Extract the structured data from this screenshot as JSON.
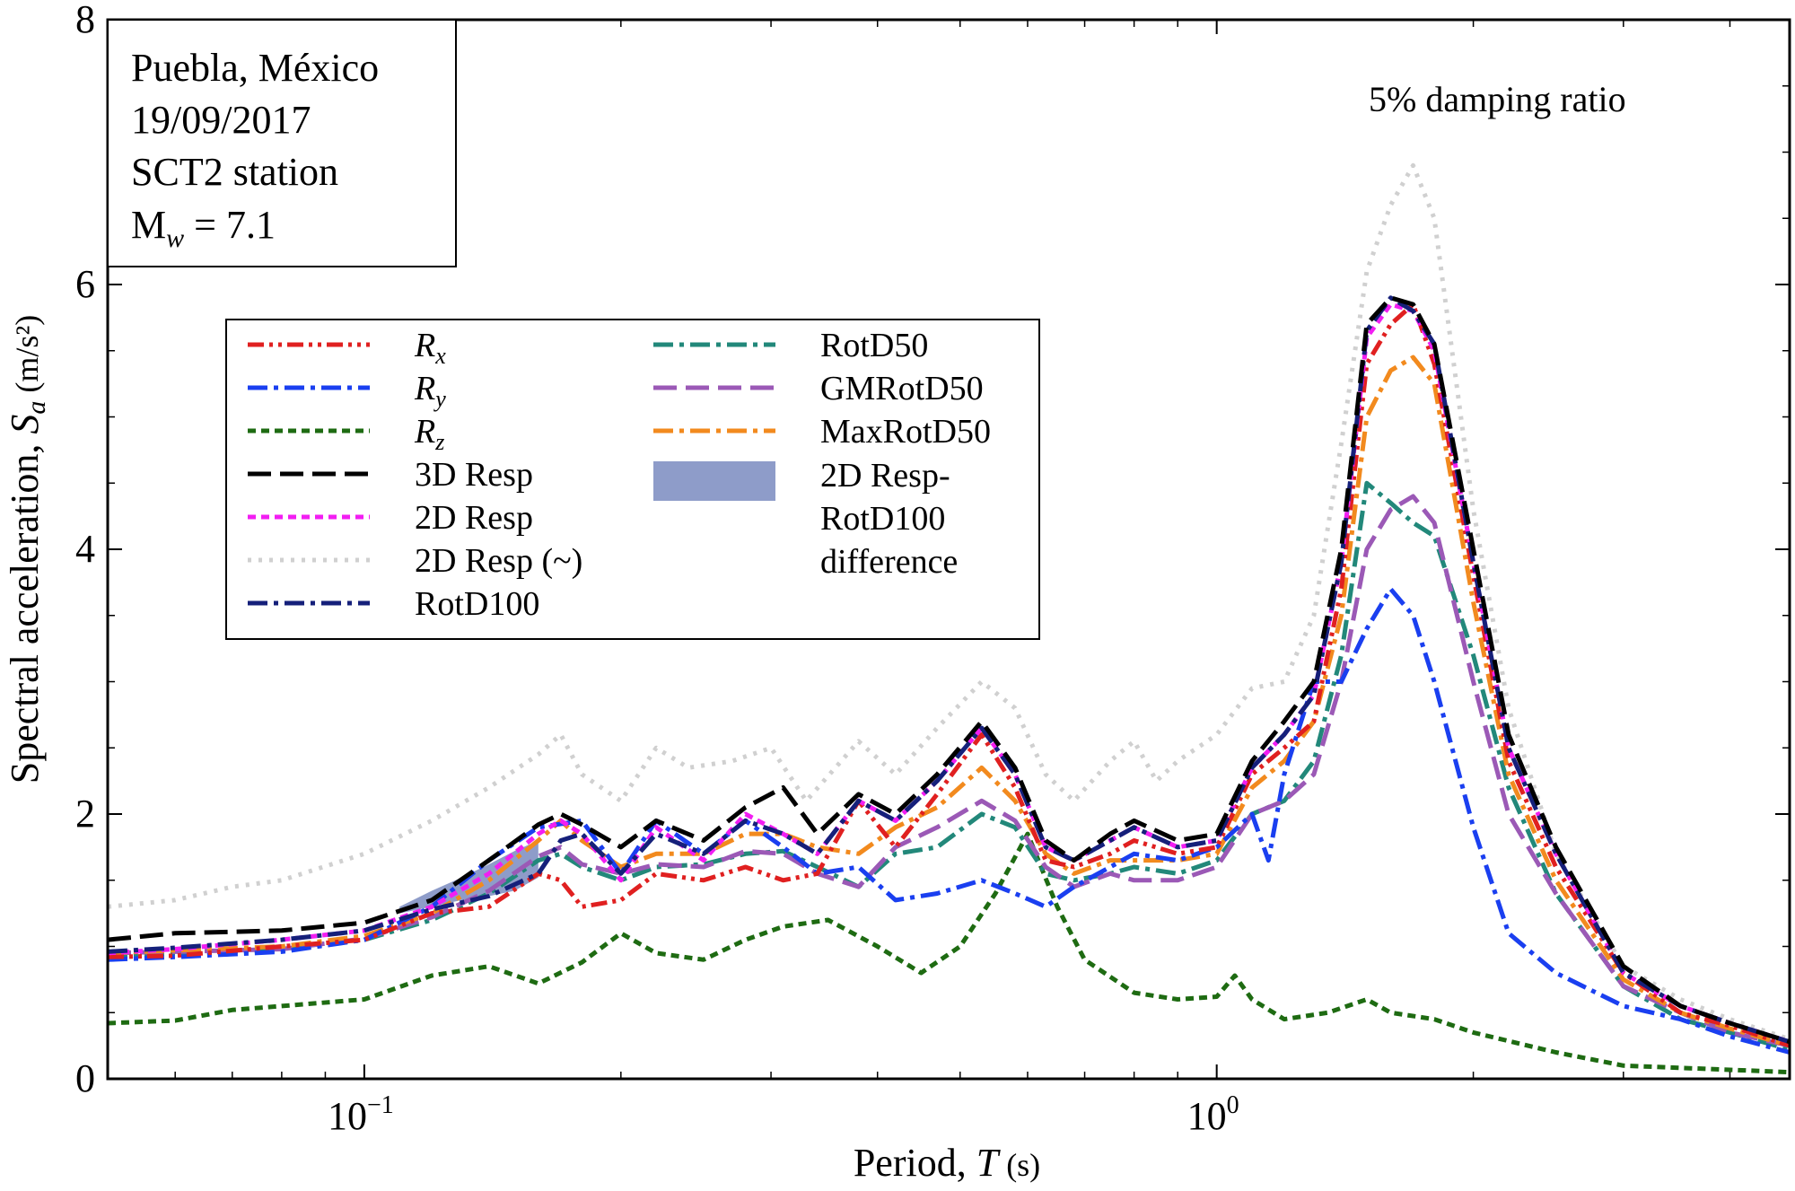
{
  "info_box": {
    "line1": "Puebla, México",
    "line2": "19/09/2017",
    "line3": "SCT2 station",
    "mw_main": "M",
    "mw_sub": "w",
    "mw_rest": " = 7.1"
  },
  "annotation": "5% damping ratio",
  "chart_data": {
    "type": "line",
    "xlabel_text": "Period, ",
    "xlabel_italic": "T",
    "xlabel_unit": " (s)",
    "ylabel_text": "Spectral acceleration, ",
    "ylabel_italic": "S",
    "ylabel_sub": "a",
    "ylabel_unit": " (m/s²)",
    "x_scale": "log",
    "xlim": [
      0.05,
      4.7
    ],
    "ylim": [
      0,
      8
    ],
    "yticks": [
      "0",
      "2",
      "4",
      "6",
      "8"
    ],
    "xticks": [
      {
        "value": 0.1,
        "base": "10",
        "exp": "−1"
      },
      {
        "value": 1.0,
        "base": "10",
        "exp": "0"
      }
    ],
    "grid": false,
    "legend_position": "upper-left",
    "shaded_region": {
      "label_lines": [
        "2D Resp-",
        "RotD100",
        "difference"
      ],
      "color": "#8e9cc9",
      "x": [
        0.11,
        0.12,
        0.13,
        0.14,
        0.15,
        0.16
      ],
      "upper": [
        1.3,
        1.42,
        1.52,
        1.62,
        1.72,
        1.8
      ],
      "lower": [
        1.25,
        1.3,
        1.35,
        1.38,
        1.42,
        1.52
      ]
    },
    "series": [
      {
        "name": "2D Resp (~)",
        "color": "#d0d0d0",
        "style": "dot",
        "x": [
          0.05,
          0.06,
          0.07,
          0.08,
          0.1,
          0.12,
          0.14,
          0.16,
          0.17,
          0.18,
          0.2,
          0.22,
          0.24,
          0.27,
          0.3,
          0.33,
          0.38,
          0.42,
          0.47,
          0.53,
          0.58,
          0.63,
          0.68,
          0.75,
          0.8,
          0.85,
          0.9,
          1.0,
          1.1,
          1.2,
          1.3,
          1.4,
          1.5,
          1.6,
          1.7,
          1.8,
          2.0,
          2.2,
          2.5,
          3.0,
          3.5,
          4.0,
          4.7
        ],
        "y": [
          1.3,
          1.35,
          1.45,
          1.5,
          1.7,
          1.95,
          2.2,
          2.45,
          2.6,
          2.3,
          2.1,
          2.5,
          2.35,
          2.4,
          2.5,
          2.1,
          2.55,
          2.3,
          2.65,
          3.0,
          2.8,
          2.3,
          2.1,
          2.4,
          2.55,
          2.25,
          2.4,
          2.6,
          2.95,
          3.0,
          3.5,
          4.8,
          6.1,
          6.6,
          6.9,
          6.5,
          4.3,
          2.8,
          1.7,
          0.85,
          0.6,
          0.45,
          0.3
        ]
      },
      {
        "name": "R_z",
        "color": "#1e6b12",
        "style": "short-dash",
        "x": [
          0.05,
          0.06,
          0.07,
          0.08,
          0.1,
          0.12,
          0.14,
          0.16,
          0.18,
          0.2,
          0.22,
          0.25,
          0.28,
          0.31,
          0.35,
          0.4,
          0.45,
          0.5,
          0.55,
          0.6,
          0.65,
          0.7,
          0.8,
          0.9,
          1.0,
          1.05,
          1.1,
          1.2,
          1.35,
          1.5,
          1.6,
          1.8,
          2.0,
          2.5,
          3.0,
          4.7
        ],
        "y": [
          0.42,
          0.44,
          0.52,
          0.55,
          0.6,
          0.78,
          0.85,
          0.72,
          0.88,
          1.1,
          0.95,
          0.9,
          1.05,
          1.15,
          1.2,
          1.0,
          0.8,
          1.0,
          1.4,
          1.85,
          1.3,
          0.9,
          0.65,
          0.6,
          0.62,
          0.78,
          0.6,
          0.45,
          0.5,
          0.6,
          0.5,
          0.45,
          0.35,
          0.2,
          0.1,
          0.05
        ]
      },
      {
        "name": "RotD50",
        "color": "#22887a",
        "style": "dash-dot",
        "x": [
          0.05,
          0.06,
          0.08,
          0.1,
          0.12,
          0.14,
          0.16,
          0.17,
          0.18,
          0.2,
          0.22,
          0.25,
          0.28,
          0.31,
          0.34,
          0.38,
          0.42,
          0.47,
          0.53,
          0.58,
          0.63,
          0.68,
          0.75,
          0.8,
          0.9,
          1.0,
          1.1,
          1.2,
          1.3,
          1.4,
          1.5,
          1.6,
          1.7,
          1.8,
          2.0,
          2.2,
          2.5,
          3.0,
          3.5,
          4.0,
          4.7
        ],
        "y": [
          0.92,
          0.95,
          0.97,
          1.05,
          1.2,
          1.4,
          1.65,
          1.7,
          1.6,
          1.5,
          1.6,
          1.62,
          1.7,
          1.72,
          1.6,
          1.45,
          1.7,
          1.75,
          2.0,
          1.9,
          1.55,
          1.5,
          1.55,
          1.6,
          1.55,
          1.65,
          2.0,
          2.1,
          2.4,
          3.2,
          4.5,
          4.35,
          4.2,
          4.1,
          3.2,
          2.2,
          1.4,
          0.7,
          0.45,
          0.35,
          0.22
        ]
      },
      {
        "name": "GMRotD50",
        "color": "#9b59b6",
        "style": "long-dash",
        "x": [
          0.05,
          0.06,
          0.08,
          0.1,
          0.12,
          0.14,
          0.16,
          0.17,
          0.18,
          0.2,
          0.22,
          0.25,
          0.28,
          0.31,
          0.34,
          0.38,
          0.42,
          0.47,
          0.53,
          0.58,
          0.63,
          0.68,
          0.75,
          0.8,
          0.9,
          1.0,
          1.1,
          1.2,
          1.3,
          1.4,
          1.5,
          1.6,
          1.7,
          1.8,
          2.0,
          2.2,
          2.5,
          3.0,
          3.5,
          4.0,
          4.7
        ],
        "y": [
          0.95,
          0.96,
          0.98,
          1.06,
          1.22,
          1.42,
          1.68,
          1.75,
          1.62,
          1.55,
          1.62,
          1.6,
          1.72,
          1.7,
          1.55,
          1.45,
          1.75,
          1.9,
          2.1,
          1.95,
          1.6,
          1.45,
          1.55,
          1.5,
          1.5,
          1.6,
          2.0,
          2.1,
          2.3,
          3.0,
          4.0,
          4.3,
          4.4,
          4.2,
          3.0,
          2.0,
          1.4,
          0.7,
          0.5,
          0.35,
          0.25
        ]
      },
      {
        "name": "MaxRotD50",
        "color": "#f28a1e",
        "style": "dash-dot",
        "x": [
          0.05,
          0.06,
          0.08,
          0.1,
          0.12,
          0.14,
          0.16,
          0.17,
          0.18,
          0.2,
          0.22,
          0.25,
          0.28,
          0.31,
          0.34,
          0.38,
          0.42,
          0.47,
          0.53,
          0.58,
          0.63,
          0.68,
          0.75,
          0.8,
          0.9,
          1.0,
          1.1,
          1.2,
          1.3,
          1.4,
          1.5,
          1.6,
          1.7,
          1.8,
          2.0,
          2.2,
          2.5,
          3.0,
          3.5,
          4.0,
          4.7
        ],
        "y": [
          0.95,
          0.97,
          1.0,
          1.08,
          1.25,
          1.5,
          1.8,
          1.95,
          1.8,
          1.6,
          1.7,
          1.7,
          1.85,
          1.85,
          1.75,
          1.7,
          1.9,
          2.05,
          2.35,
          2.1,
          1.7,
          1.55,
          1.65,
          1.65,
          1.65,
          1.7,
          2.2,
          2.4,
          2.7,
          3.5,
          5.0,
          5.35,
          5.45,
          5.25,
          3.6,
          2.3,
          1.5,
          0.75,
          0.5,
          0.38,
          0.25
        ]
      },
      {
        "name": "R_y",
        "color": "#1a3ff0",
        "style": "dash-dot",
        "x": [
          0.05,
          0.06,
          0.08,
          0.1,
          0.12,
          0.14,
          0.16,
          0.18,
          0.2,
          0.22,
          0.25,
          0.28,
          0.31,
          0.34,
          0.38,
          0.42,
          0.47,
          0.53,
          0.58,
          0.63,
          0.68,
          0.75,
          0.8,
          0.9,
          1.0,
          1.1,
          1.15,
          1.2,
          1.3,
          1.4,
          1.5,
          1.6,
          1.7,
          1.8,
          2.0,
          2.2,
          2.5,
          3.0,
          3.5,
          4.0,
          4.7
        ],
        "y": [
          0.9,
          0.92,
          0.96,
          1.05,
          1.3,
          1.65,
          1.9,
          1.95,
          1.55,
          1.95,
          1.7,
          1.95,
          1.75,
          1.55,
          1.6,
          1.35,
          1.4,
          1.5,
          1.4,
          1.3,
          1.45,
          1.6,
          1.7,
          1.65,
          1.75,
          2.0,
          1.65,
          2.3,
          3.0,
          3.0,
          3.4,
          3.7,
          3.5,
          3.0,
          1.9,
          1.1,
          0.8,
          0.55,
          0.45,
          0.32,
          0.2
        ]
      },
      {
        "name": "R_x",
        "color": "#e02020",
        "style": "dash-dot-dot",
        "x": [
          0.05,
          0.06,
          0.08,
          0.1,
          0.12,
          0.14,
          0.16,
          0.17,
          0.18,
          0.2,
          0.22,
          0.25,
          0.28,
          0.31,
          0.34,
          0.38,
          0.42,
          0.47,
          0.53,
          0.58,
          0.63,
          0.68,
          0.75,
          0.8,
          0.9,
          1.0,
          1.1,
          1.2,
          1.3,
          1.4,
          1.5,
          1.6,
          1.7,
          1.8,
          2.0,
          2.2,
          2.5,
          3.0,
          3.5,
          4.0,
          4.7
        ],
        "y": [
          0.92,
          0.93,
          1.0,
          1.05,
          1.25,
          1.3,
          1.55,
          1.5,
          1.3,
          1.35,
          1.55,
          1.5,
          1.6,
          1.5,
          1.55,
          2.1,
          1.75,
          2.15,
          2.6,
          2.2,
          1.65,
          1.6,
          1.7,
          1.8,
          1.7,
          1.75,
          2.3,
          2.5,
          2.7,
          3.7,
          5.4,
          5.7,
          5.85,
          5.4,
          3.8,
          2.4,
          1.6,
          0.8,
          0.5,
          0.4,
          0.25
        ]
      },
      {
        "name": "2D Resp",
        "color": "#f21ef2",
        "style": "short-dash",
        "x": [
          0.05,
          0.06,
          0.08,
          0.1,
          0.12,
          0.14,
          0.16,
          0.17,
          0.18,
          0.2,
          0.22,
          0.25,
          0.28,
          0.31,
          0.34,
          0.38,
          0.42,
          0.47,
          0.53,
          0.58,
          0.63,
          0.68,
          0.75,
          0.8,
          0.9,
          1.0,
          1.1,
          1.2,
          1.3,
          1.4,
          1.5,
          1.6,
          1.7,
          1.8,
          2.0,
          2.2,
          2.5,
          3.0,
          3.5,
          4.0,
          4.7
        ],
        "y": [
          0.95,
          0.98,
          1.05,
          1.12,
          1.3,
          1.55,
          1.85,
          1.95,
          1.85,
          1.5,
          1.9,
          1.65,
          2.0,
          1.85,
          1.7,
          2.1,
          1.95,
          2.25,
          2.65,
          2.3,
          1.75,
          1.65,
          1.8,
          1.9,
          1.75,
          1.8,
          2.35,
          2.6,
          2.9,
          3.9,
          5.6,
          5.85,
          5.8,
          5.5,
          3.9,
          2.5,
          1.7,
          0.8,
          0.55,
          0.42,
          0.28
        ]
      },
      {
        "name": "RotD100",
        "color": "#15207a",
        "style": "dash-dot",
        "x": [
          0.05,
          0.06,
          0.08,
          0.1,
          0.12,
          0.14,
          0.16,
          0.17,
          0.18,
          0.2,
          0.22,
          0.25,
          0.28,
          0.31,
          0.34,
          0.38,
          0.42,
          0.47,
          0.53,
          0.58,
          0.63,
          0.68,
          0.75,
          0.8,
          0.9,
          1.0,
          1.1,
          1.2,
          1.3,
          1.4,
          1.5,
          1.6,
          1.7,
          1.8,
          2.0,
          2.2,
          2.5,
          3.0,
          3.5,
          4.0,
          4.7
        ],
        "y": [
          0.96,
          0.99,
          1.05,
          1.12,
          1.28,
          1.38,
          1.55,
          1.8,
          1.85,
          1.55,
          1.85,
          1.7,
          1.95,
          1.85,
          1.7,
          2.1,
          1.95,
          2.25,
          2.65,
          2.3,
          1.75,
          1.65,
          1.8,
          1.9,
          1.75,
          1.8,
          2.35,
          2.6,
          2.9,
          3.9,
          5.65,
          5.9,
          5.8,
          5.55,
          3.9,
          2.5,
          1.7,
          0.8,
          0.55,
          0.42,
          0.28
        ]
      },
      {
        "name": "3D Resp",
        "color": "#000000",
        "style": "long-dash",
        "x": [
          0.05,
          0.06,
          0.08,
          0.1,
          0.12,
          0.14,
          0.16,
          0.17,
          0.18,
          0.2,
          0.22,
          0.25,
          0.28,
          0.31,
          0.34,
          0.38,
          0.42,
          0.47,
          0.53,
          0.58,
          0.63,
          0.68,
          0.75,
          0.8,
          0.9,
          1.0,
          1.1,
          1.2,
          1.3,
          1.4,
          1.5,
          1.6,
          1.7,
          1.8,
          2.0,
          2.2,
          2.5,
          3.0,
          3.5,
          4.0,
          4.7
        ],
        "y": [
          1.05,
          1.1,
          1.12,
          1.18,
          1.35,
          1.65,
          1.92,
          2.0,
          1.92,
          1.75,
          1.95,
          1.8,
          2.05,
          2.2,
          1.85,
          2.15,
          2.0,
          2.3,
          2.7,
          2.35,
          1.8,
          1.65,
          1.85,
          1.95,
          1.8,
          1.85,
          2.4,
          2.7,
          3.0,
          4.0,
          5.7,
          5.9,
          5.85,
          5.55,
          4.0,
          2.6,
          1.75,
          0.85,
          0.55,
          0.42,
          0.28
        ]
      }
    ],
    "legend": {
      "col1": [
        {
          "label": "R",
          "sub": "x",
          "color": "#e02020",
          "style": "dash-dot-dot",
          "italic": true
        },
        {
          "label": "R",
          "sub": "y",
          "color": "#1a3ff0",
          "style": "dash-dot",
          "italic": true
        },
        {
          "label": "R",
          "sub": "z",
          "color": "#1e6b12",
          "style": "short-dash",
          "italic": true
        },
        {
          "label": "3D Resp",
          "sub": "",
          "color": "#000000",
          "style": "long-dash",
          "italic": false
        },
        {
          "label": "2D Resp",
          "sub": "",
          "color": "#f21ef2",
          "style": "short-dash",
          "italic": false
        },
        {
          "label": "2D Resp (~)",
          "sub": "",
          "color": "#d0d0d0",
          "style": "dot",
          "italic": false
        },
        {
          "label": "RotD100",
          "sub": "",
          "color": "#15207a",
          "style": "dash-dot",
          "italic": false
        }
      ],
      "col2": [
        {
          "label": "RotD50",
          "color": "#22887a",
          "style": "dash-dot"
        },
        {
          "label": "GMRotD50",
          "color": "#9b59b6",
          "style": "long-dash"
        },
        {
          "label": "MaxRotD50",
          "color": "#f28a1e",
          "style": "dash-dot"
        }
      ]
    }
  }
}
